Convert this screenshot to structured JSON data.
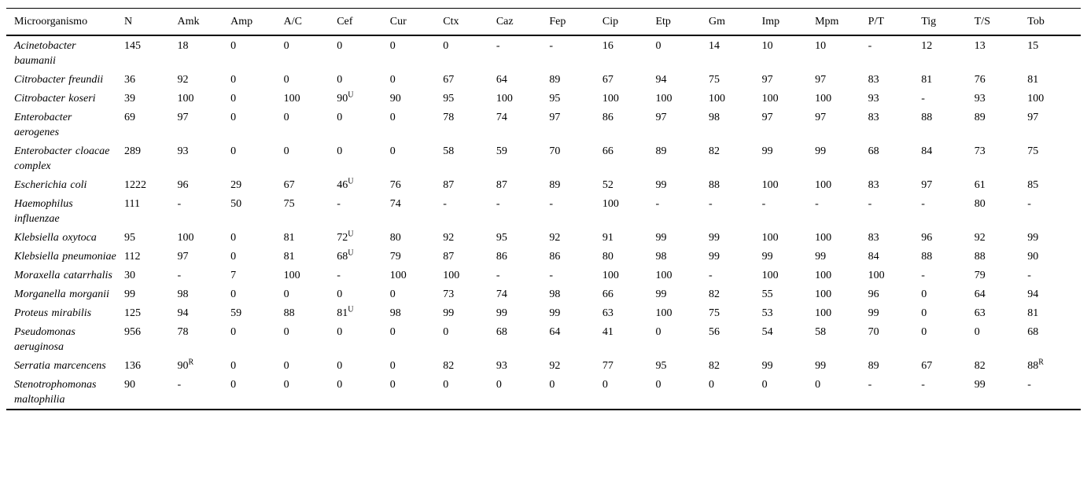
{
  "colors": {
    "background": "#ffffff",
    "text": "#000000",
    "rule": "#000000"
  },
  "table": {
    "columns": [
      "Microorganismo",
      "N",
      "Amk",
      "Amp",
      "A/C",
      "Cef",
      "Cur",
      "Ctx",
      "Caz",
      "Fep",
      "Cip",
      "Etp",
      "Gm",
      "Imp",
      "Mpm",
      "P/T",
      "Tig",
      "T/S",
      "Tob"
    ],
    "superscript_marker": "^",
    "rows": [
      {
        "name": "Acinetobacter baumanii",
        "values": [
          "145",
          "18",
          "0",
          "0",
          "0",
          "0",
          "0",
          "-",
          "-",
          "16",
          "0",
          "14",
          "10",
          "10",
          "-",
          "12",
          "13",
          "15"
        ]
      },
      {
        "name": "Citrobacter freundii",
        "values": [
          "36",
          "92",
          "0",
          "0",
          "0",
          "0",
          "67",
          "64",
          "89",
          "67",
          "94",
          "75",
          "97",
          "97",
          "83",
          "81",
          "76",
          "81"
        ]
      },
      {
        "name": "Citrobacter koseri",
        "values": [
          "39",
          "100",
          "0",
          "100",
          "90^U",
          "90",
          "95",
          "100",
          "95",
          "100",
          "100",
          "100",
          "100",
          "100",
          "93",
          "-",
          "93",
          "100"
        ]
      },
      {
        "name": "Enterobacter aerogenes",
        "values": [
          "69",
          "97",
          "0",
          "0",
          "0",
          "0",
          "78",
          "74",
          "97",
          "86",
          "97",
          "98",
          "97",
          "97",
          "83",
          "88",
          "89",
          "97"
        ]
      },
      {
        "name": "Enterobacter cloacae complex",
        "values": [
          "289",
          "93",
          "0",
          "0",
          "0",
          "0",
          "58",
          "59",
          "70",
          "66",
          "89",
          "82",
          "99",
          "99",
          "68",
          "84",
          "73",
          "75"
        ]
      },
      {
        "name": "Escherichia coli",
        "values": [
          "1222",
          "96",
          "29",
          "67",
          "46^U",
          "76",
          "87",
          "87",
          "89",
          "52",
          "99",
          "88",
          "100",
          "100",
          "83",
          "97",
          "61",
          "85"
        ]
      },
      {
        "name": "Haemophilus influenzae",
        "values": [
          "111",
          "-",
          "50",
          "75",
          "-",
          "74",
          "-",
          "-",
          "-",
          "100",
          "-",
          "-",
          "-",
          "-",
          "-",
          "-",
          "80",
          "-"
        ]
      },
      {
        "name": "Klebsiella oxytoca",
        "values": [
          "95",
          "100",
          "0",
          "81",
          "72^U",
          "80",
          "92",
          "95",
          "92",
          "91",
          "99",
          "99",
          "100",
          "100",
          "83",
          "96",
          "92",
          "99"
        ]
      },
      {
        "name": "Klebsiella pneumoniae",
        "values": [
          "112",
          "97",
          "0",
          "81",
          "68^U",
          "79",
          "87",
          "86",
          "86",
          "80",
          "98",
          "99",
          "99",
          "99",
          "84",
          "88",
          "88",
          "90"
        ]
      },
      {
        "name": "Moraxella catarrhalis",
        "values": [
          "30",
          "-",
          "7",
          "100",
          "-",
          "100",
          "100",
          "-",
          "-",
          "100",
          "100",
          "-",
          "100",
          "100",
          "100",
          "-",
          "79",
          "-"
        ]
      },
      {
        "name": "Morganella morganii",
        "values": [
          "99",
          "98",
          "0",
          "0",
          "0",
          "0",
          "73",
          "74",
          "98",
          "66",
          "99",
          "82",
          "55",
          "100",
          "96",
          "0",
          "64",
          "94"
        ]
      },
      {
        "name": "Proteus mirabilis",
        "values": [
          "125",
          "94",
          "59",
          "88",
          "81^U",
          "98",
          "99",
          "99",
          "99",
          "63",
          "100",
          "75",
          "53",
          "100",
          "99",
          "0",
          "63",
          "81"
        ]
      },
      {
        "name": "Pseudomonas aeruginosa",
        "values": [
          "956",
          "78",
          "0",
          "0",
          "0",
          "0",
          "0",
          "68",
          "64",
          "41",
          "0",
          "56",
          "54",
          "58",
          "70",
          "0",
          "0",
          "68"
        ]
      },
      {
        "name": "Serratia marcencens",
        "values": [
          "136",
          "90^R",
          "0",
          "0",
          "0",
          "0",
          "82",
          "93",
          "92",
          "77",
          "95",
          "82",
          "99",
          "99",
          "89",
          "67",
          "82",
          "88^R"
        ]
      },
      {
        "name": "Stenotrophomonas maltophilia",
        "values": [
          "90",
          "-",
          "0",
          "0",
          "0",
          "0",
          "0",
          "0",
          "0",
          "0",
          "0",
          "0",
          "0",
          "0",
          "-",
          "-",
          "99",
          "-"
        ]
      }
    ]
  }
}
